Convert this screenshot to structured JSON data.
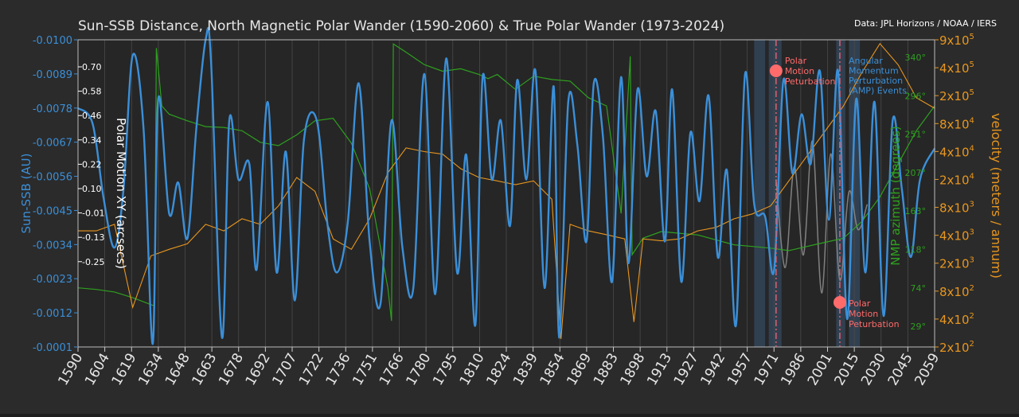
{
  "chart_data": {
    "type": "line",
    "title": "Sun-SSB Distance, North Magnetic Polar Wander (1590-2060) & True Polar Wander (1973-2024)",
    "source": "Data: JPL Horizons / NOAA / IERS",
    "xlim": [
      1590,
      2060
    ],
    "x_ticks": [
      "1590",
      "1604",
      "1619",
      "1634",
      "1648",
      "1663",
      "1678",
      "1692",
      "1707",
      "1722",
      "1736",
      "1751",
      "1766",
      "1780",
      "1795",
      "1810",
      "1824",
      "1839",
      "1854",
      "1869",
      "1883",
      "1898",
      "1913",
      "1927",
      "1942",
      "1957",
      "1971",
      "1986",
      "2001",
      "2015",
      "2030",
      "2045",
      "2059"
    ],
    "y_left": {
      "label": "Sun-SSB (AU)",
      "ticks": [
        "-0.0100",
        "-0.0089",
        "-0.0078",
        "-0.0067",
        "-0.0056",
        "-0.0045",
        "-0.0034",
        "-0.0023",
        "-0.0012",
        "-0.0001"
      ],
      "ylim": [
        -0.01,
        -0.0001
      ],
      "color": "#3b8fd8"
    },
    "y_polar": {
      "label": "Polar Motion XY (arcsecs)",
      "ticks": [
        "0.70",
        "0.58",
        "0.46",
        "0.34",
        "0.22",
        "0.10",
        "-0.01",
        "-0.13",
        "-0.25"
      ],
      "color": "#ffffff"
    },
    "y_azimuth": {
      "label": "NMP azimuth (degrees)",
      "ticks": [
        "340°",
        "296°",
        "251°",
        "207°",
        "163°",
        "118°",
        "74°",
        "29°"
      ],
      "color": "#2ea01f"
    },
    "y_velocity": {
      "label": "velocity (meters / annum)",
      "ticks": [
        "9x10^5",
        "4x10^5",
        "2x10^5",
        "8x10^4",
        "4x10^4",
        "2x10^4",
        "8x10^3",
        "4x10^3",
        "2x10^3",
        "8x10^2",
        "4x10^2",
        "2x10^2"
      ],
      "scale": "log",
      "color": "#e8961e"
    },
    "series": [
      {
        "name": "Sun-SSB",
        "color": "#3b8fd8",
        "x": [
          1590,
          1598,
          1604,
          1610,
          1615,
          1620,
          1626,
          1631,
          1634,
          1640,
          1645,
          1650,
          1655,
          1660,
          1663,
          1669,
          1673,
          1678,
          1684,
          1688,
          1694,
          1699,
          1704,
          1709,
          1714,
          1721,
          1727,
          1732,
          1738,
          1744,
          1750,
          1756,
          1762,
          1768,
          1774,
          1780,
          1786,
          1792,
          1798,
          1803,
          1808,
          1812,
          1817,
          1822,
          1827,
          1831,
          1836,
          1841,
          1846,
          1851,
          1854,
          1859,
          1864,
          1869,
          1873,
          1878,
          1883,
          1888,
          1892,
          1897,
          1902,
          1907,
          1912,
          1916,
          1921,
          1926,
          1931,
          1936,
          1941,
          1946,
          1951,
          1956,
          1961,
          1967,
          1972,
          1977,
          1982,
          1987,
          1992,
          1997,
          2002,
          2007,
          2012,
          2017,
          2022,
          2027,
          2032,
          2037,
          2042,
          2047,
          2052,
          2060
        ],
        "y": [
          -0.0078,
          -0.0073,
          -0.0049,
          -0.0033,
          -0.0052,
          -0.0095,
          -0.0071,
          -0.0002,
          -0.0081,
          -0.0044,
          -0.0054,
          -0.0036,
          -0.0072,
          -0.01,
          -0.0093,
          -0.0004,
          -0.0074,
          -0.0055,
          -0.006,
          -0.0026,
          -0.008,
          -0.0025,
          -0.0064,
          -0.0016,
          -0.0068,
          -0.0074,
          -0.004,
          -0.0025,
          -0.0041,
          -0.0086,
          -0.0035,
          -0.0015,
          -0.0074,
          -0.0033,
          -0.002,
          -0.0089,
          -0.0018,
          -0.0094,
          -0.0025,
          -0.0063,
          -0.0008,
          -0.0088,
          -0.0055,
          -0.0074,
          -0.004,
          -0.0087,
          -0.0055,
          -0.009,
          -0.002,
          -0.0085,
          -0.0004,
          -0.008,
          -0.0066,
          -0.0035,
          -0.0086,
          -0.0069,
          -0.0022,
          -0.0088,
          -0.0028,
          -0.0084,
          -0.0056,
          -0.0077,
          -0.0035,
          -0.0084,
          -0.0022,
          -0.007,
          -0.0048,
          -0.0082,
          -0.003,
          -0.0058,
          -0.0008,
          -0.0089,
          -0.0047,
          -0.0043,
          -0.0026,
          -0.0087,
          -0.0057,
          -0.0076,
          -0.006,
          -0.009,
          -0.0042,
          -0.009,
          -0.001,
          -0.0081,
          -0.0025,
          -0.008,
          -0.0011,
          -0.0074,
          -0.0052,
          -0.003,
          -0.0055,
          -0.0065
        ]
      },
      {
        "name": "NMP azimuth",
        "color": "#2ea01f",
        "x": [
          1590,
          1600,
          1610,
          1620,
          1632,
          1633,
          1636,
          1640,
          1650,
          1660,
          1670,
          1680,
          1690,
          1700,
          1710,
          1720,
          1730,
          1740,
          1750,
          1760,
          1762,
          1763,
          1770,
          1780,
          1790,
          1800,
          1810,
          1815,
          1820,
          1830,
          1840,
          1850,
          1860,
          1870,
          1880,
          1888,
          1893,
          1894,
          1900,
          1910,
          1920,
          1930,
          1940,
          1950,
          1960,
          1970,
          1980,
          1990,
          2000,
          2010,
          2020,
          2030,
          2040,
          2050,
          2060
        ],
        "y": [
          60,
          58,
          55,
          48,
          38,
          350,
          280,
          270,
          262,
          255,
          254,
          250,
          236,
          232,
          245,
          262,
          265,
          235,
          180,
          60,
          20,
          355,
          345,
          330,
          322,
          325,
          318,
          313,
          318,
          300,
          316,
          312,
          310,
          290,
          280,
          150,
          340,
          100,
          120,
          128,
          126,
          124,
          118,
          112,
          110,
          108,
          105,
          110,
          115,
          120,
          140,
          170,
          210,
          250,
          280
        ]
      },
      {
        "name": "NMP velocity",
        "color": "#e8961e",
        "x": [
          1590,
          1600,
          1610,
          1620,
          1630,
          1640,
          1650,
          1660,
          1670,
          1680,
          1690,
          1700,
          1710,
          1720,
          1730,
          1740,
          1750,
          1760,
          1770,
          1780,
          1790,
          1800,
          1810,
          1820,
          1830,
          1840,
          1850,
          1855,
          1860,
          1870,
          1880,
          1890,
          1895,
          1900,
          1910,
          1920,
          1930,
          1940,
          1950,
          1960,
          1970,
          1980,
          1990,
          2000,
          2010,
          2020,
          2030,
          2040,
          2050,
          2060
        ],
        "y": [
          5000,
          5000,
          6000,
          600,
          2500,
          3000,
          3500,
          6000,
          5000,
          7000,
          6000,
          10000,
          22000,
          15000,
          4000,
          3000,
          7000,
          25000,
          50000,
          45000,
          42000,
          28000,
          22000,
          20000,
          18000,
          20000,
          12000,
          250,
          6000,
          5000,
          4500,
          4000,
          400,
          4000,
          3800,
          4000,
          5000,
          5500,
          7000,
          8000,
          10000,
          20000,
          40000,
          80000,
          160000,
          400000,
          900000,
          500000,
          200000,
          150000
        ]
      },
      {
        "name": "Polar Motion XY",
        "color": "#8a8a8a",
        "x": [
          1973,
          1978,
          1983,
          1988,
          1993,
          1998,
          2003,
          2008,
          2013,
          2018,
          2023
        ],
        "y": [
          0.25,
          -0.1,
          0.3,
          -0.05,
          0.4,
          -0.2,
          0.35,
          -0.15,
          0.2,
          0.05,
          0.15
        ]
      }
    ],
    "annotations": [
      {
        "text": "Polar Motion Peturbation",
        "x": 1973,
        "lines": [
          "Polar",
          "Motion",
          "Peturbation"
        ]
      },
      {
        "text": "Polar Motion Peturbation",
        "x": 2008,
        "lines": [
          "Polar",
          "Motion",
          "Peturbation"
        ]
      },
      {
        "text": "Angular Momentum Perturbation (AMP) Events",
        "lines": [
          "Angular",
          "Momentum",
          "Perturbation",
          "(AMP) Events"
        ]
      }
    ],
    "amp_bands": [
      [
        1961,
        1967
      ],
      [
        1969,
        1976
      ],
      [
        2006,
        2011
      ],
      [
        2013,
        2019
      ]
    ],
    "grid": true,
    "legend": "none"
  }
}
